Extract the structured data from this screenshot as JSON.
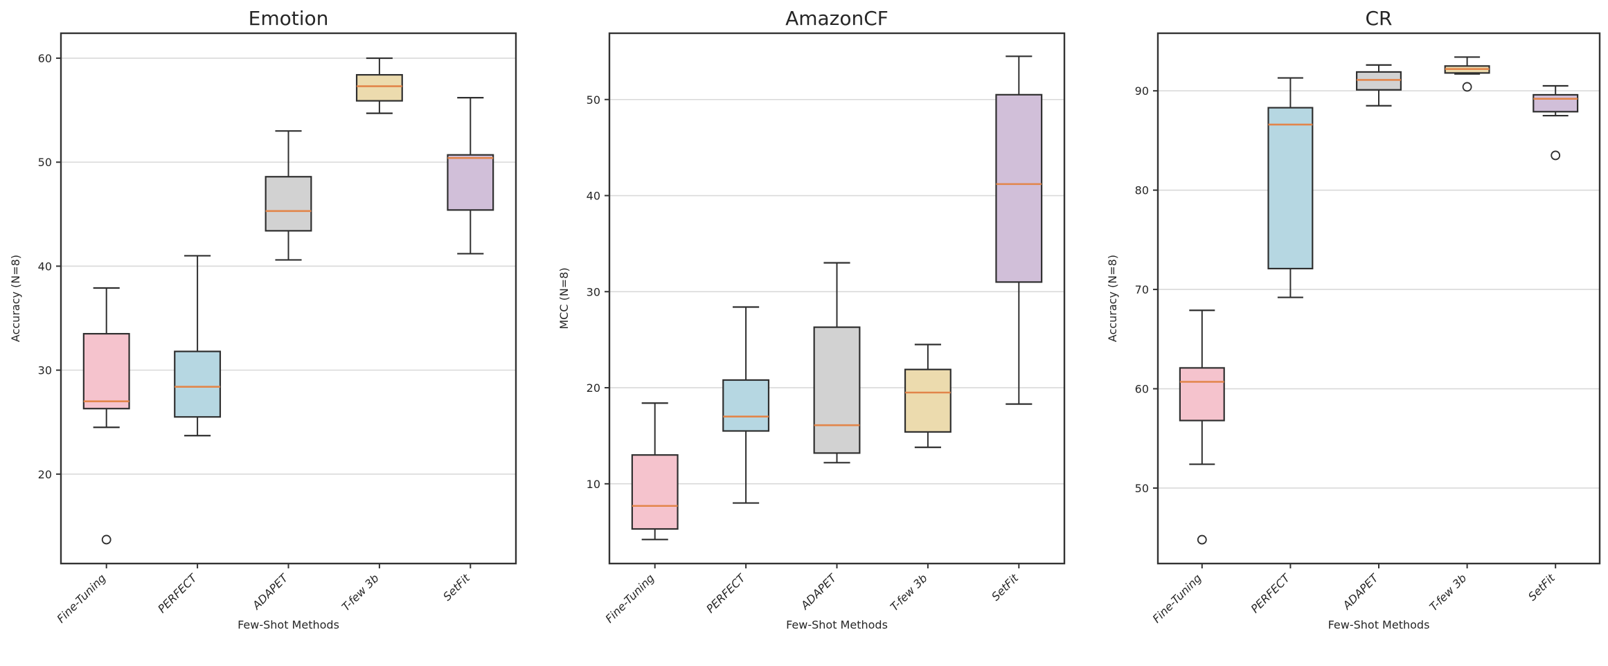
{
  "figure": {
    "xlabel": "Few-Shot Methods",
    "categories": [
      "Fine-Tuning",
      "PERFECT",
      "ADAPET",
      "T-few 3b",
      "SetFit"
    ],
    "box_colors": [
      "#f5c3cd",
      "#b6d7e2",
      "#d2d2d2",
      "#ecdbae",
      "#d1bfd9"
    ],
    "median_color": "#e2854a",
    "line_color": "#2f2f2f",
    "grid_color": "#d9d9d9",
    "spine_color": "#333333"
  },
  "chart_data": [
    {
      "type": "boxplot",
      "title": "Emotion",
      "ylabel": "Accuracy (N=8)",
      "xlabel": "Few-Shot Methods",
      "categories": [
        "Fine-Tuning",
        "PERFECT",
        "ADAPET",
        "T-few 3b",
        "SetFit"
      ],
      "yticks": [
        20,
        30,
        40,
        50,
        60
      ],
      "ylim": [
        11.4,
        62.4
      ],
      "grid": true,
      "legend": "none",
      "series": [
        {
          "name": "Fine-Tuning",
          "whislo": 24.5,
          "q1": 26.3,
          "med": 27.0,
          "q3": 33.5,
          "whishi": 37.9,
          "fliers": [
            13.7
          ]
        },
        {
          "name": "PERFECT",
          "whislo": 23.7,
          "q1": 25.5,
          "med": 28.4,
          "q3": 31.8,
          "whishi": 41.0,
          "fliers": []
        },
        {
          "name": "ADAPET",
          "whislo": 40.6,
          "q1": 43.4,
          "med": 45.3,
          "q3": 48.6,
          "whishi": 53.0,
          "fliers": []
        },
        {
          "name": "T-few 3b",
          "whislo": 54.7,
          "q1": 55.9,
          "med": 57.3,
          "q3": 58.4,
          "whishi": 60.0,
          "fliers": []
        },
        {
          "name": "SetFit",
          "whislo": 41.2,
          "q1": 45.4,
          "med": 50.4,
          "q3": 50.7,
          "whishi": 56.2,
          "fliers": []
        }
      ]
    },
    {
      "type": "boxplot",
      "title": "AmazonCF",
      "ylabel": "MCC (N=8)",
      "xlabel": "Few-Shot Methods",
      "categories": [
        "Fine-Tuning",
        "PERFECT",
        "ADAPET",
        "T-few 3b",
        "SetFit"
      ],
      "yticks": [
        10,
        20,
        30,
        40,
        50
      ],
      "ylim": [
        1.7,
        56.9
      ],
      "grid": true,
      "legend": "none",
      "series": [
        {
          "name": "Fine-Tuning",
          "whislo": 4.2,
          "q1": 5.3,
          "med": 7.7,
          "q3": 13.0,
          "whishi": 18.4,
          "fliers": []
        },
        {
          "name": "PERFECT",
          "whislo": 8.0,
          "q1": 15.5,
          "med": 17.0,
          "q3": 20.8,
          "whishi": 28.4,
          "fliers": []
        },
        {
          "name": "ADAPET",
          "whislo": 12.2,
          "q1": 13.2,
          "med": 16.1,
          "q3": 26.3,
          "whishi": 33.0,
          "fliers": []
        },
        {
          "name": "T-few 3b",
          "whislo": 13.8,
          "q1": 15.4,
          "med": 19.5,
          "q3": 21.9,
          "whishi": 24.5,
          "fliers": []
        },
        {
          "name": "SetFit",
          "whislo": 18.3,
          "q1": 31.0,
          "med": 41.2,
          "q3": 50.5,
          "whishi": 54.5,
          "fliers": []
        }
      ]
    },
    {
      "type": "boxplot",
      "title": "CR",
      "ylabel": "Accuracy (N=8)",
      "xlabel": "Few-Shot Methods",
      "categories": [
        "Fine-Tuning",
        "PERFECT",
        "ADAPET",
        "T-few 3b",
        "SetFit"
      ],
      "yticks": [
        50,
        60,
        70,
        80,
        90
      ],
      "ylim": [
        42.4,
        95.8
      ],
      "grid": true,
      "legend": "none",
      "series": [
        {
          "name": "Fine-Tuning",
          "whislo": 52.4,
          "q1": 56.8,
          "med": 60.7,
          "q3": 62.1,
          "whishi": 67.9,
          "fliers": [
            44.8
          ]
        },
        {
          "name": "PERFECT",
          "whislo": 69.2,
          "q1": 72.1,
          "med": 86.6,
          "q3": 88.3,
          "whishi": 91.3,
          "fliers": []
        },
        {
          "name": "ADAPET",
          "whislo": 88.5,
          "q1": 90.1,
          "med": 91.1,
          "q3": 91.9,
          "whishi": 92.6,
          "fliers": []
        },
        {
          "name": "T-few 3b",
          "whislo": 91.7,
          "q1": 91.8,
          "med": 92.2,
          "q3": 92.5,
          "whishi": 93.4,
          "fliers": [
            90.4
          ]
        },
        {
          "name": "SetFit",
          "whislo": 87.5,
          "q1": 87.9,
          "med": 89.2,
          "q3": 89.6,
          "whishi": 90.5,
          "fliers": [
            83.5
          ]
        }
      ]
    }
  ]
}
